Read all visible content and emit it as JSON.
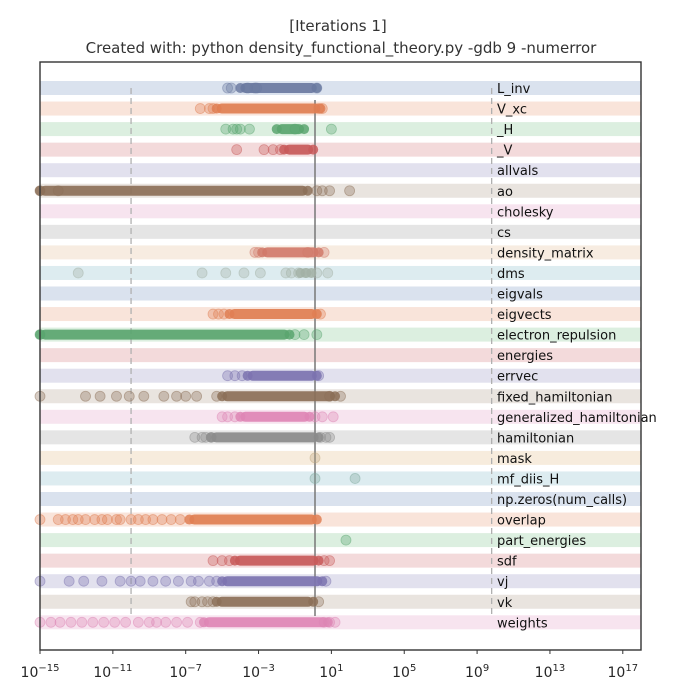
{
  "chart_data": {
    "type": "scatter",
    "title": "[Iterations 1]",
    "subtitle": "Created with:  python density_functional_theory.py -gdb 9 -numerror",
    "xscale": "log",
    "xlim_exp": [
      -15,
      18
    ],
    "xticks": [
      {
        "exp": -15,
        "base": "10",
        "power": "−15"
      },
      {
        "exp": -11,
        "base": "10",
        "power": "−11"
      },
      {
        "exp": -7,
        "base": "10",
        "power": "−7"
      },
      {
        "exp": -3,
        "base": "10",
        "power": "−3"
      },
      {
        "exp": 1,
        "base": "10",
        "power": "1"
      },
      {
        "exp": 5,
        "base": "10",
        "power": "5"
      },
      {
        "exp": 9,
        "base": "10",
        "power": "9"
      },
      {
        "exp": 13,
        "base": "10",
        "power": "13"
      },
      {
        "exp": 17,
        "base": "10",
        "power": "17"
      }
    ],
    "reference_lines": [
      {
        "exp": -10,
        "style": "dashed",
        "color": "#b0b0b0"
      },
      {
        "exp": 0.1,
        "style": "solid",
        "color": "#777777"
      },
      {
        "exp": 9.8,
        "style": "dashed",
        "color": "#b0b0b0"
      }
    ],
    "grid": false,
    "series": [
      {
        "name": "L_inv",
        "color": "#6b7aa1",
        "band": "#dae2ee",
        "points": [
          -4.7,
          -4.5,
          -3.6,
          -3.2,
          -3.1,
          0.2
        ],
        "dense": [
          -4.0,
          0.2
        ]
      },
      {
        "name": "V_xc",
        "color": "#e07f53",
        "band": "#f9e4da",
        "points": [
          -6.2,
          -5.7,
          -5.5,
          0.3,
          0.5
        ],
        "dense": [
          -5.3,
          0.4
        ]
      },
      {
        "name": "_H",
        "color": "#5aa56f",
        "band": "#dcefe0",
        "points": [
          -4.8,
          -4.4,
          -4.2,
          -4.0,
          -3.5,
          -1.0,
          1.0
        ],
        "dense": [
          -2.0,
          -0.5
        ]
      },
      {
        "name": "_V",
        "color": "#c85a5a",
        "band": "#f3dadb",
        "points": [
          -4.2,
          -2.7,
          -2.2,
          -1.8
        ],
        "dense": [
          -1.6,
          0.0
        ]
      },
      {
        "name": "allvals",
        "color": "#7c73b0",
        "band": "#e2e1ee",
        "points": [],
        "dense": null
      },
      {
        "name": "ao",
        "color": "#8c7058",
        "band": "#e9e4df",
        "points": [
          -15.0,
          -14.0,
          0.2,
          0.5,
          0.9,
          2.0
        ],
        "dense": [
          -15.0,
          -0.3
        ]
      },
      {
        "name": "cholesky",
        "color": "#de86b5",
        "band": "#f7e4ef",
        "points": [],
        "dense": null
      },
      {
        "name": "cs",
        "color": "#8b8b8b",
        "band": "#e5e5e5",
        "points": [],
        "dense": null
      },
      {
        "name": "density_matrix",
        "color": "#d17a6a",
        "band": "#f7ece1",
        "points": [
          -3.2,
          -3.0,
          -0.3,
          0.6
        ],
        "dense": [
          -2.8,
          0.3
        ]
      },
      {
        "name": "dms",
        "color": "#a3b2a6",
        "band": "#ddecf0",
        "points": [
          -12.9,
          -6.1,
          -4.8,
          -3.8,
          -2.9,
          -1.5,
          -1.2,
          -0.8,
          0.2,
          0.8
        ],
        "dense": [
          -0.7,
          -0.1
        ]
      },
      {
        "name": "eigvals",
        "color": "#6b7aa1",
        "band": "#dae2ee",
        "points": [],
        "dense": null
      },
      {
        "name": "eigvects",
        "color": "#e07f53",
        "band": "#f9e4da",
        "points": [
          -5.5,
          -5.2,
          -4.9,
          0.4
        ],
        "dense": [
          -4.6,
          0.2
        ]
      },
      {
        "name": "electron_repulsion",
        "color": "#5aa56f",
        "band": "#dcefe0",
        "points": [
          -15.0,
          -1.0,
          -0.5,
          0.2
        ],
        "dense": [
          -15.0,
          -1.3
        ]
      },
      {
        "name": "energies",
        "color": "#c85a5a",
        "band": "#f3dadb",
        "points": [],
        "dense": null
      },
      {
        "name": "errvec",
        "color": "#7c73b0",
        "band": "#e2e1ee",
        "points": [
          -4.7,
          -4.3,
          -3.9,
          0.3
        ],
        "dense": [
          -3.6,
          0.2
        ]
      },
      {
        "name": "fixed_hamiltonian",
        "color": "#8c7058",
        "band": "#e9e4df",
        "points": [
          -15.0,
          -12.5,
          -11.7,
          -10.8,
          -10.1,
          -9.3,
          -8.2,
          -7.5,
          -7.0,
          -6.4,
          -5.3,
          0.9,
          1.5
        ],
        "dense": [
          -5.0,
          1.2
        ]
      },
      {
        "name": "generalized_hamiltonian",
        "color": "#de86b5",
        "band": "#f7e4ef",
        "points": [
          -5.0,
          -4.7,
          -4.3,
          0.1,
          0.5,
          1.1
        ],
        "dense": [
          -4.0,
          -0.2
        ]
      },
      {
        "name": "hamiltonian",
        "color": "#8b8b8b",
        "band": "#e5e5e5",
        "points": [
          -6.5,
          -6.1,
          -5.9,
          -5.6,
          0.4,
          0.7,
          0.9
        ],
        "dense": [
          -5.6,
          0.3
        ]
      },
      {
        "name": "mask",
        "color": "#bfa982",
        "band": "#f7ecdd",
        "points": [
          0.1
        ],
        "dense": null
      },
      {
        "name": "mf_diis_H",
        "color": "#7faa9d",
        "band": "#ddecf0",
        "points": [
          0.1,
          2.3
        ],
        "dense": null
      },
      {
        "name": "np.zeros(num_calls)",
        "color": "#6b7aa1",
        "band": "#dae2ee",
        "points": [],
        "dense": null
      },
      {
        "name": "overlap",
        "color": "#e07f53",
        "band": "#f9e4da",
        "points": [
          -15.0,
          -14.0,
          -13.6,
          -13.2,
          -12.9,
          -12.5,
          -12.0,
          -11.6,
          -11.3,
          -10.8,
          -10.6,
          -10.0,
          -9.6,
          -9.2,
          -8.8,
          -8.3,
          -7.8,
          -7.3
        ],
        "dense": [
          -6.8,
          0.2
        ]
      },
      {
        "name": "part_energies",
        "color": "#5aa56f",
        "band": "#dcefe0",
        "points": [
          1.8
        ],
        "dense": null
      },
      {
        "name": "sdf",
        "color": "#c85a5a",
        "band": "#f3dadb",
        "points": [
          -5.5,
          -5.0,
          -4.6,
          0.6,
          0.9
        ],
        "dense": [
          -4.3,
          0.3
        ]
      },
      {
        "name": "vj",
        "color": "#7c73b0",
        "band": "#e2e1ee",
        "points": [
          -15.0,
          -13.4,
          -12.6,
          -11.6,
          -10.6,
          -10.0,
          -9.5,
          -8.8,
          -8.1,
          -7.4,
          -6.7,
          -6.3,
          -5.7,
          -5.3,
          0.7
        ],
        "dense": [
          -5.0,
          0.5
        ]
      },
      {
        "name": "vk",
        "color": "#8c7058",
        "band": "#e9e4df",
        "points": [
          -6.7,
          -6.5,
          -6.1,
          -5.8,
          -5.5,
          0.3
        ],
        "dense": [
          -5.3,
          0.0
        ]
      },
      {
        "name": "weights",
        "color": "#de86b5",
        "band": "#f7e4ef",
        "points": [
          -15.0,
          -14.4,
          -13.9,
          -13.3,
          -12.7,
          -12.1,
          -11.5,
          -10.9,
          -10.3,
          -9.6,
          -9.0,
          -8.6,
          -8.1,
          -7.5,
          -6.9,
          -6.2,
          0.6,
          0.9,
          1.2
        ],
        "dense": [
          -6.0,
          0.8
        ]
      }
    ]
  }
}
